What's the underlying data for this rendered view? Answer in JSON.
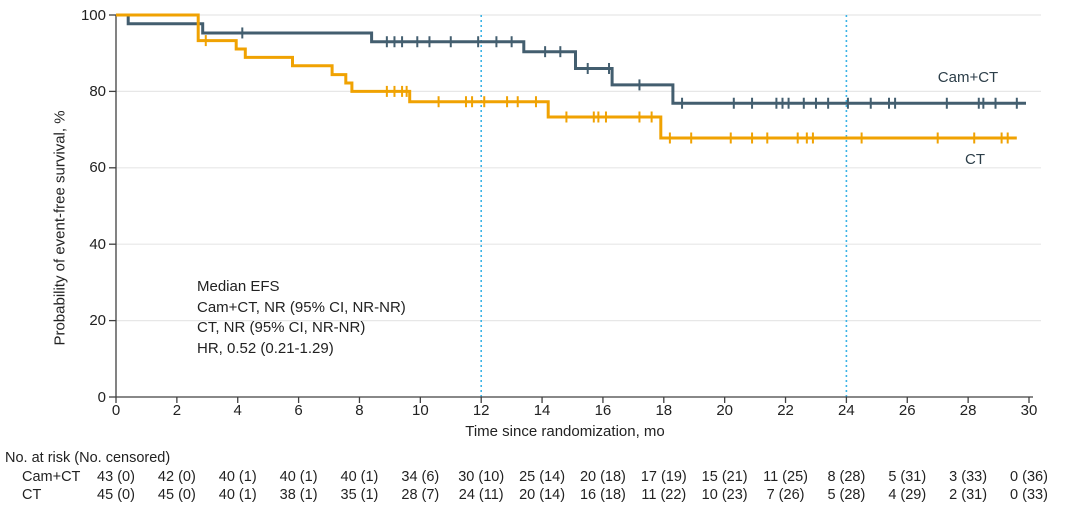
{
  "chart_data": {
    "type": "line",
    "subtype": "kaplan-meier-step-plot",
    "title": "",
    "xlabel": "Time since randomization, mo",
    "ylabel": "Probability of event-free survival, %",
    "xlim": [
      0,
      30
    ],
    "ylim": [
      0,
      100
    ],
    "xticks": [
      0,
      2,
      4,
      6,
      8,
      10,
      12,
      14,
      16,
      18,
      20,
      22,
      24,
      26,
      28,
      30
    ],
    "yticks": [
      0,
      20,
      40,
      60,
      80,
      100
    ],
    "grid": "horizontal",
    "legend_position": "labels-at-line-ends",
    "reference_lines": {
      "months": [
        12,
        24
      ],
      "style": "dotted",
      "color": "#3BB3E6"
    },
    "series": [
      {
        "name": "Cam+CT",
        "color": "#435E6F",
        "steps": [
          [
            0,
            100
          ],
          [
            0.4,
            97.7
          ],
          [
            2.85,
            95.3
          ],
          [
            8.4,
            93.0
          ],
          [
            13.4,
            90.4
          ],
          [
            15.1,
            86.0
          ],
          [
            16.3,
            81.7
          ],
          [
            18.3,
            76.9
          ]
        ],
        "end_month": 29.9,
        "censor_months": [
          4.15,
          8.9,
          9.15,
          9.4,
          9.9,
          10.3,
          11.0,
          11.9,
          12.5,
          13.0,
          14.1,
          14.6,
          15.5,
          16.2,
          17.2,
          18.6,
          20.3,
          20.9,
          21.7,
          21.9,
          22.1,
          22.6,
          23.0,
          23.4,
          24.05,
          24.8,
          25.4,
          25.6,
          27.3,
          28.35,
          28.5,
          28.9,
          29.6
        ]
      },
      {
        "name": "CT",
        "color": "#F0A202",
        "steps": [
          [
            0,
            100
          ],
          [
            2.7,
            93.3
          ],
          [
            3.95,
            91.1
          ],
          [
            4.25,
            88.9
          ],
          [
            5.8,
            86.7
          ],
          [
            7.1,
            84.4
          ],
          [
            7.55,
            82.2
          ],
          [
            7.75,
            80.0
          ],
          [
            9.65,
            77.3
          ],
          [
            14.2,
            73.3
          ],
          [
            17.9,
            67.8
          ]
        ],
        "end_month": 29.6,
        "censor_months": [
          2.95,
          8.9,
          9.15,
          9.4,
          9.55,
          10.6,
          11.5,
          11.7,
          12.1,
          12.85,
          13.2,
          13.8,
          14.8,
          15.7,
          15.85,
          16.1,
          17.2,
          17.6,
          18.2,
          18.9,
          20.2,
          20.9,
          21.4,
          22.4,
          22.7,
          22.9,
          24.5,
          27.0,
          28.2,
          29.1,
          29.3
        ]
      }
    ]
  },
  "annotation": {
    "lines": [
      "Median EFS",
      "Cam+CT, NR (95% CI, NR-NR)",
      "CT, NR (95% CI, NR-NR)",
      "HR, 0.52 (0.21-1.29)"
    ]
  },
  "risk_table": {
    "header": "No. at risk (No. censored)",
    "time_points": [
      0,
      2,
      4,
      6,
      8,
      10,
      12,
      14,
      16,
      18,
      20,
      22,
      24,
      26,
      28,
      30
    ],
    "rows": [
      {
        "label": "Cam+CT",
        "values": [
          "43 (0)",
          "42 (0)",
          "40 (1)",
          "40 (1)",
          "40 (1)",
          "34 (6)",
          "30 (10)",
          "25 (14)",
          "20 (18)",
          "17 (19)",
          "15 (21)",
          "11 (25)",
          "8 (28)",
          "5 (31)",
          "3 (33)",
          "0 (36)"
        ]
      },
      {
        "label": "CT",
        "values": [
          "45 (0)",
          "45 (0)",
          "40 (1)",
          "38 (1)",
          "35 (1)",
          "28 (7)",
          "24 (11)",
          "20 (14)",
          "16 (18)",
          "11 (22)",
          "10 (23)",
          "7 (26)",
          "5 (28)",
          "4 (29)",
          "2 (31)",
          "0 (33)"
        ]
      }
    ]
  }
}
